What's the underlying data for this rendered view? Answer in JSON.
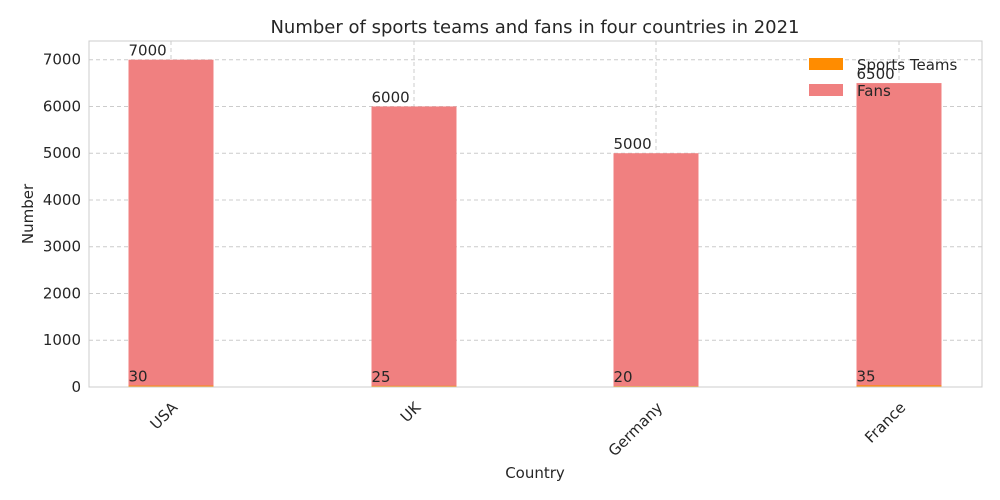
{
  "chart_data": {
    "type": "bar",
    "title": "Number of sports teams and fans in four countries in 2021",
    "xlabel": "Country",
    "ylabel": "Number",
    "categories": [
      "USA",
      "UK",
      "Germany",
      "France"
    ],
    "series": [
      {
        "name": "Sports Teams",
        "values": [
          30,
          25,
          20,
          35
        ],
        "color": "#ff8c00"
      },
      {
        "name": "Fans",
        "values": [
          7000,
          6000,
          5000,
          6500
        ],
        "color": "#f08080"
      }
    ],
    "ylim": [
      0,
      7400
    ],
    "yticks": [
      0,
      1000,
      2000,
      3000,
      4000,
      5000,
      6000,
      7000
    ],
    "grid": true,
    "legend_position": "top-right"
  }
}
